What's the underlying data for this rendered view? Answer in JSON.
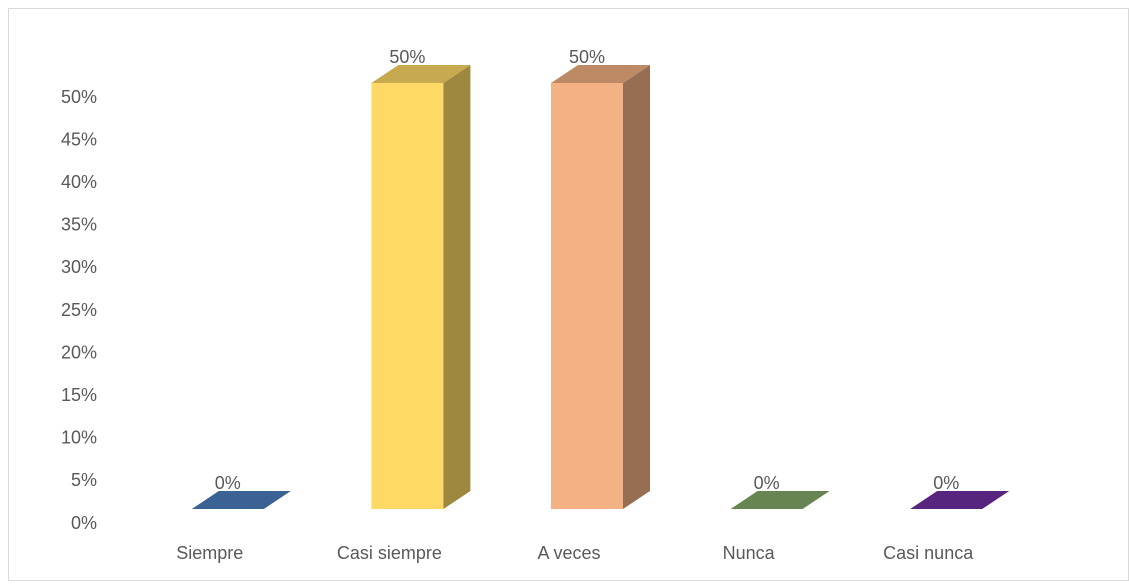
{
  "chart_data": {
    "type": "bar3d",
    "categories": [
      "Siempre",
      "Casi siempre",
      "A veces",
      "Nunca",
      "Casi nunca"
    ],
    "values": [
      0,
      50,
      50,
      0,
      0
    ],
    "value_labels": [
      "0%",
      "50%",
      "50%",
      "0%",
      "0%"
    ],
    "colors": [
      "#4a7ebb",
      "#ffd966",
      "#f4b183",
      "#84a96b",
      "#7030a0"
    ],
    "ylim": [
      0,
      50
    ],
    "yticks": [
      {
        "value": 0,
        "label": "0%"
      },
      {
        "value": 5,
        "label": "5%"
      },
      {
        "value": 10,
        "label": "10%"
      },
      {
        "value": 15,
        "label": "15%"
      },
      {
        "value": 20,
        "label": "20%"
      },
      {
        "value": 25,
        "label": "25%"
      },
      {
        "value": 30,
        "label": "30%"
      },
      {
        "value": 35,
        "label": "35%"
      },
      {
        "value": 40,
        "label": "40%"
      },
      {
        "value": 45,
        "label": "45%"
      },
      {
        "value": 50,
        "label": "50%"
      }
    ],
    "grid": false
  }
}
